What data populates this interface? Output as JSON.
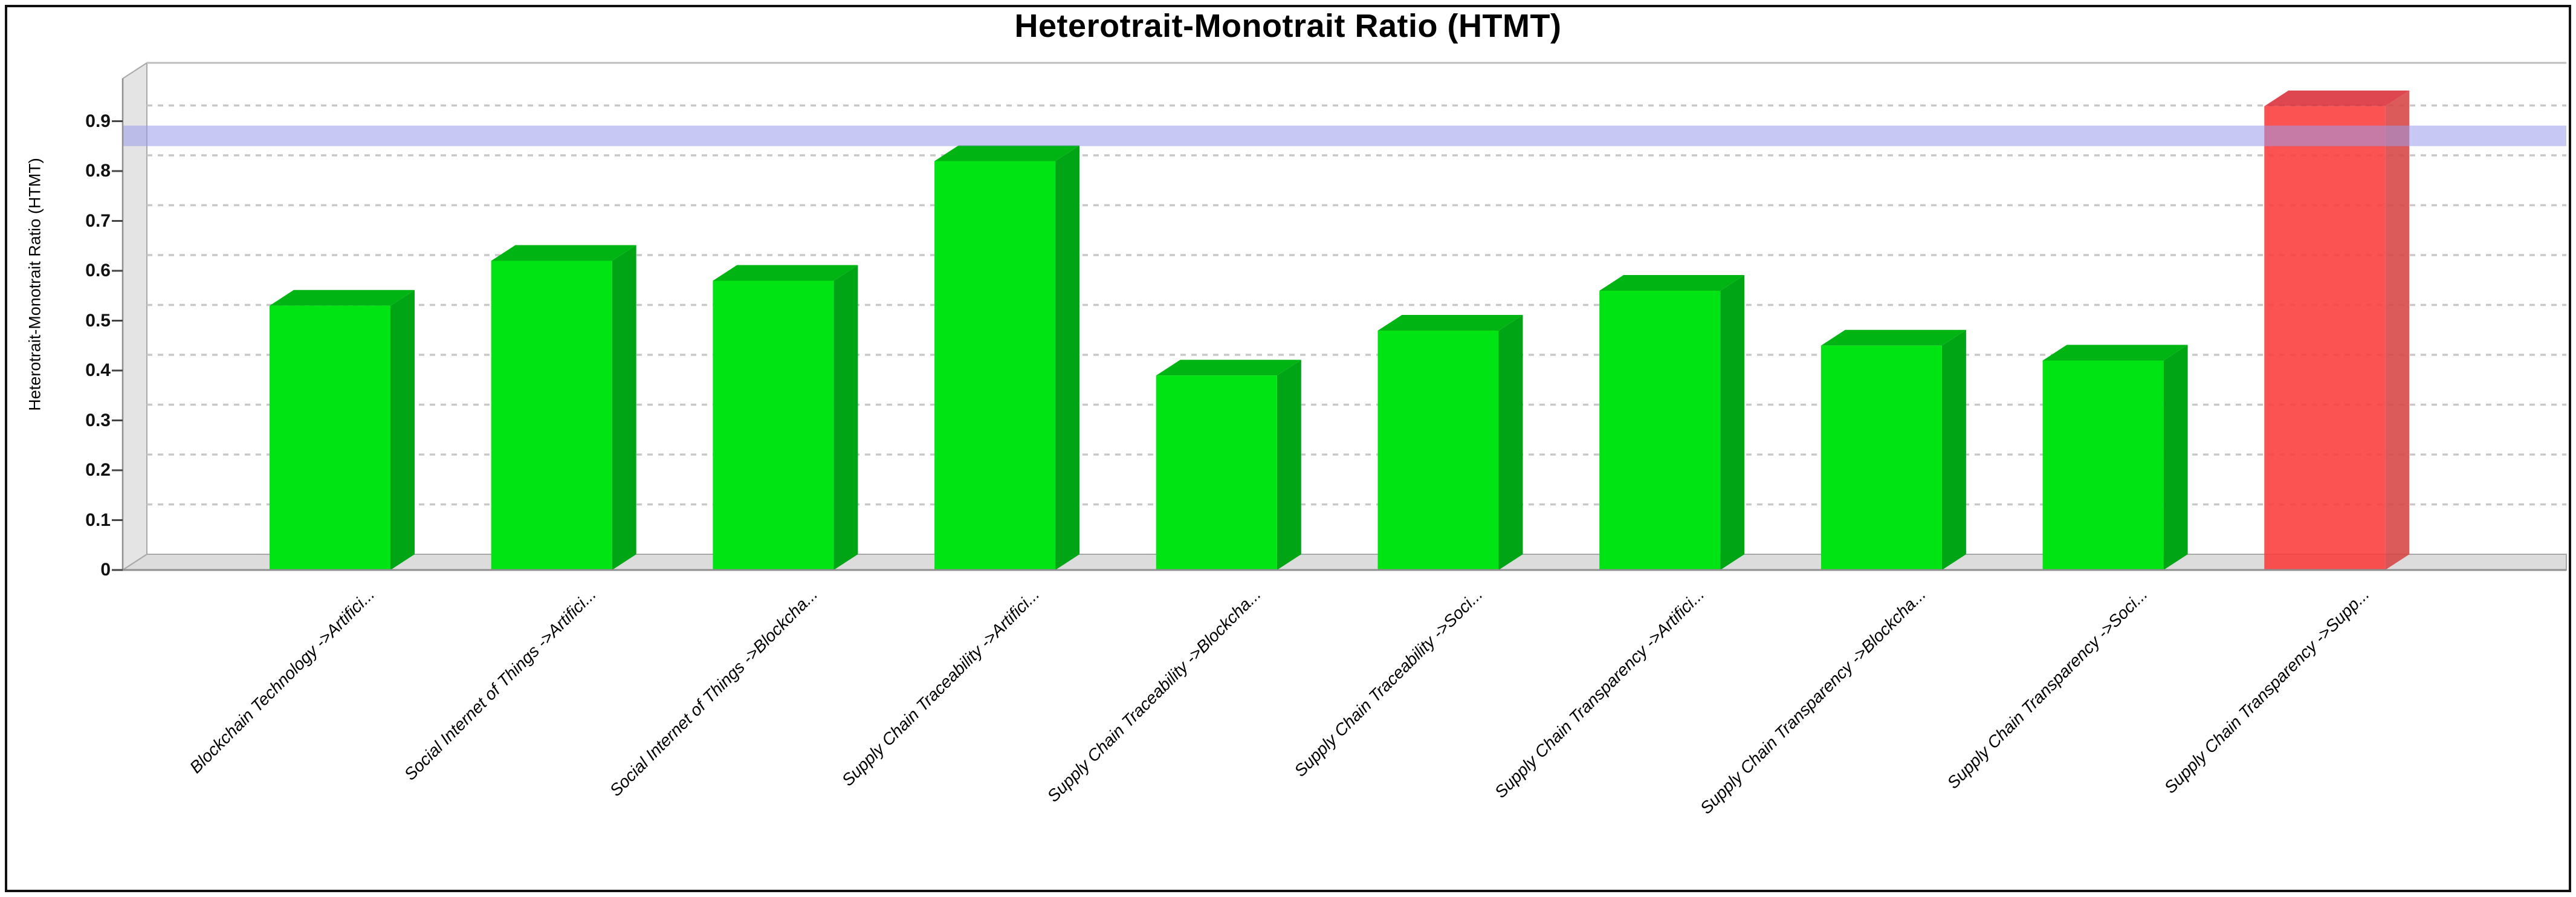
{
  "page": {
    "title": "Heterotrait-Monotrait Ratio (HTMT)"
  },
  "chart_data": {
    "type": "bar",
    "style": "3d-column",
    "title": "Heterotrait-Monotrait Ratio (HTMT)",
    "ylabel": "Heterotrait-Monotrait Ratio (HTMT)",
    "xlabel": "",
    "legend": "none",
    "grid": "dashed-horizontal",
    "ylim": [
      0,
      0.98
    ],
    "yticks": [
      0,
      0.1,
      0.2,
      0.3,
      0.4,
      0.5,
      0.6,
      0.7,
      0.8,
      0.9
    ],
    "threshold": 0.85,
    "categories": [
      "Blockchain Technology ->Artifici...",
      "Social Internet of Things ->Artifici...",
      "Social Internet of Things ->Blockcha...",
      "Supply Chain Traceability ->Artifici...",
      "Supply Chain Traceability ->Blockcha...",
      "Supply Chain Traceability ->Soci...",
      "Supply Chain Transparency ->Artifici...",
      "Supply Chain Transparency ->Blockcha...",
      "Supply Chain Transparency ->Soci...",
      "Supply Chain Transparency ->Supp..."
    ],
    "values": [
      0.53,
      0.62,
      0.58,
      0.82,
      0.39,
      0.48,
      0.56,
      0.45,
      0.42,
      0.93
    ],
    "colors": {
      "bar_ok_front": "#00e414",
      "bar_ok_top": "#00b513",
      "bar_ok_side": "#00a515",
      "bar_exceed_front": "#fa3a3a",
      "bar_exceed_top": "#d92c38",
      "bar_exceed_side": "#d64444",
      "threshold_band": "#9b9beb",
      "wall_fill": "#e4e4e4",
      "floor_fill": "#dcdcdc",
      "edge_line": "#a8a8a8",
      "gridline": "#c8c8c8",
      "axis_line": "#8f8f8f",
      "tick_mark": "#444444"
    }
  }
}
